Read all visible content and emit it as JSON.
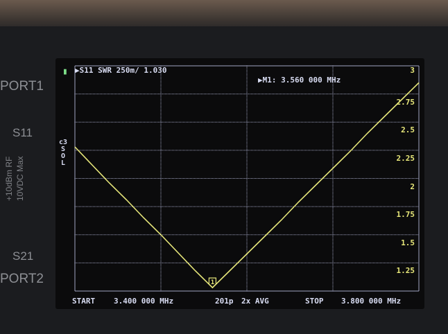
{
  "device": {
    "port1_label": "PORT1",
    "port2_label": "PORT2",
    "s11_label": "S11",
    "s21_label": "S21",
    "rf_label": "+10dBm RF",
    "vdc_label": "10VDC Max"
  },
  "screen": {
    "battery_icon": "battery-icon",
    "trace_label": "▶S11 SWR 250m/ 1.030",
    "marker_label": "▶M1: 3.560 000 MHz",
    "cal_status": [
      "c3",
      "S",
      "O",
      "L"
    ],
    "start_label": "START",
    "start_value": "3.400 000 MHz",
    "points_label": "201p",
    "avg_label": "2x AVG",
    "stop_label": "STOP",
    "stop_value": "3.800 000 MHz",
    "marker_flag": "1"
  },
  "colors": {
    "trace": "#e6e67a",
    "grid": "#c8ccf0",
    "text": "#d8dcf2",
    "battery": "#7ee08a"
  },
  "chart_data": {
    "type": "line",
    "title": "",
    "xlabel": "",
    "ylabel": "",
    "xlim": [
      3.4,
      3.8
    ],
    "ylim": [
      1,
      3
    ],
    "grid": true,
    "y_ticks": [
      "3",
      "2.75",
      "2.5",
      "2.25",
      "2",
      "1.75",
      "1.5",
      "1.25"
    ],
    "y_tick_values": [
      3,
      2.75,
      2.5,
      2.25,
      2,
      1.75,
      1.5,
      1.25
    ],
    "series": [
      {
        "x": [
          3.4,
          3.42,
          3.44,
          3.46,
          3.48,
          3.5,
          3.52,
          3.54,
          3.56,
          3.58,
          3.6,
          3.62,
          3.64,
          3.66,
          3.68,
          3.7,
          3.72,
          3.74,
          3.76,
          3.78,
          3.8
        ],
        "y": [
          2.28,
          2.12,
          1.96,
          1.81,
          1.65,
          1.5,
          1.34,
          1.18,
          1.03,
          1.18,
          1.33,
          1.48,
          1.63,
          1.79,
          1.94,
          2.09,
          2.24,
          2.4,
          2.55,
          2.7,
          2.85
        ]
      }
    ],
    "marker": {
      "x": 3.56,
      "y": 1.03,
      "label": "1"
    }
  }
}
